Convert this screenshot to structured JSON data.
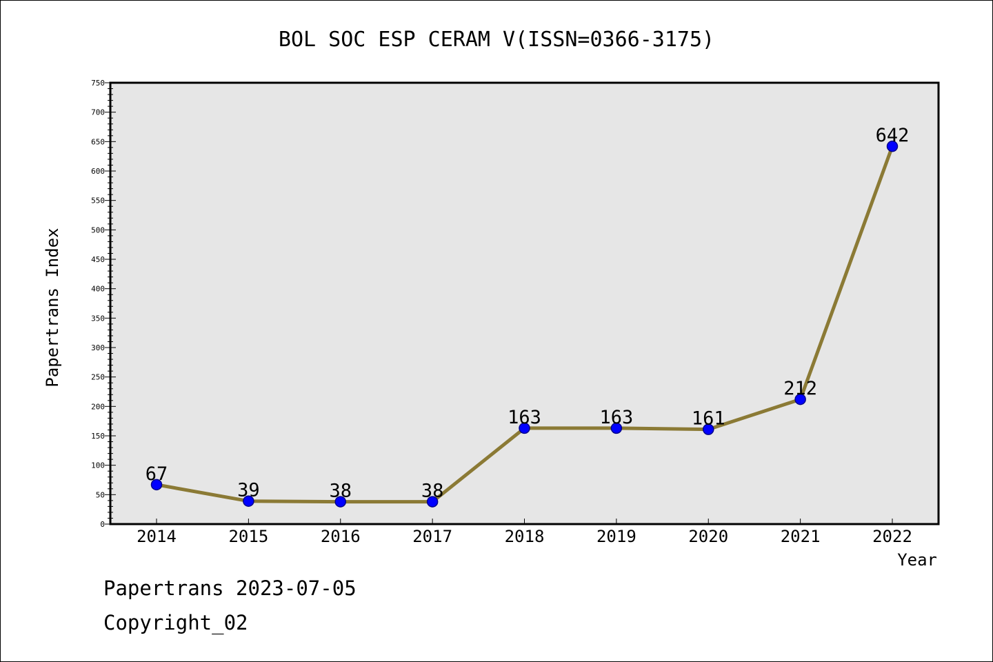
{
  "chart_data": {
    "type": "line",
    "title": "BOL SOC ESP CERAM V(ISSN=0366-3175)",
    "xlabel": "Year",
    "ylabel": "Papertrans Index",
    "categories": [
      "2014",
      "2015",
      "2016",
      "2017",
      "2018",
      "2019",
      "2020",
      "2021",
      "2022"
    ],
    "values": [
      67,
      39,
      38,
      38,
      163,
      163,
      161,
      212,
      642
    ],
    "data_labels": [
      "67",
      "39",
      "38",
      "38",
      "163",
      "163",
      "161",
      "212",
      "642"
    ],
    "ylim": [
      0,
      750
    ],
    "yticks": [
      0,
      50,
      100,
      150,
      200,
      250,
      300,
      350,
      400,
      450,
      500,
      550,
      600,
      650,
      700,
      750
    ],
    "grid": false,
    "line_color": "#8b7a35",
    "marker_color": "#0000ff",
    "plot_background": "#e6e6e6"
  },
  "footer": {
    "line1": "Papertrans 2023-07-05",
    "line2": "Copyright_02"
  }
}
